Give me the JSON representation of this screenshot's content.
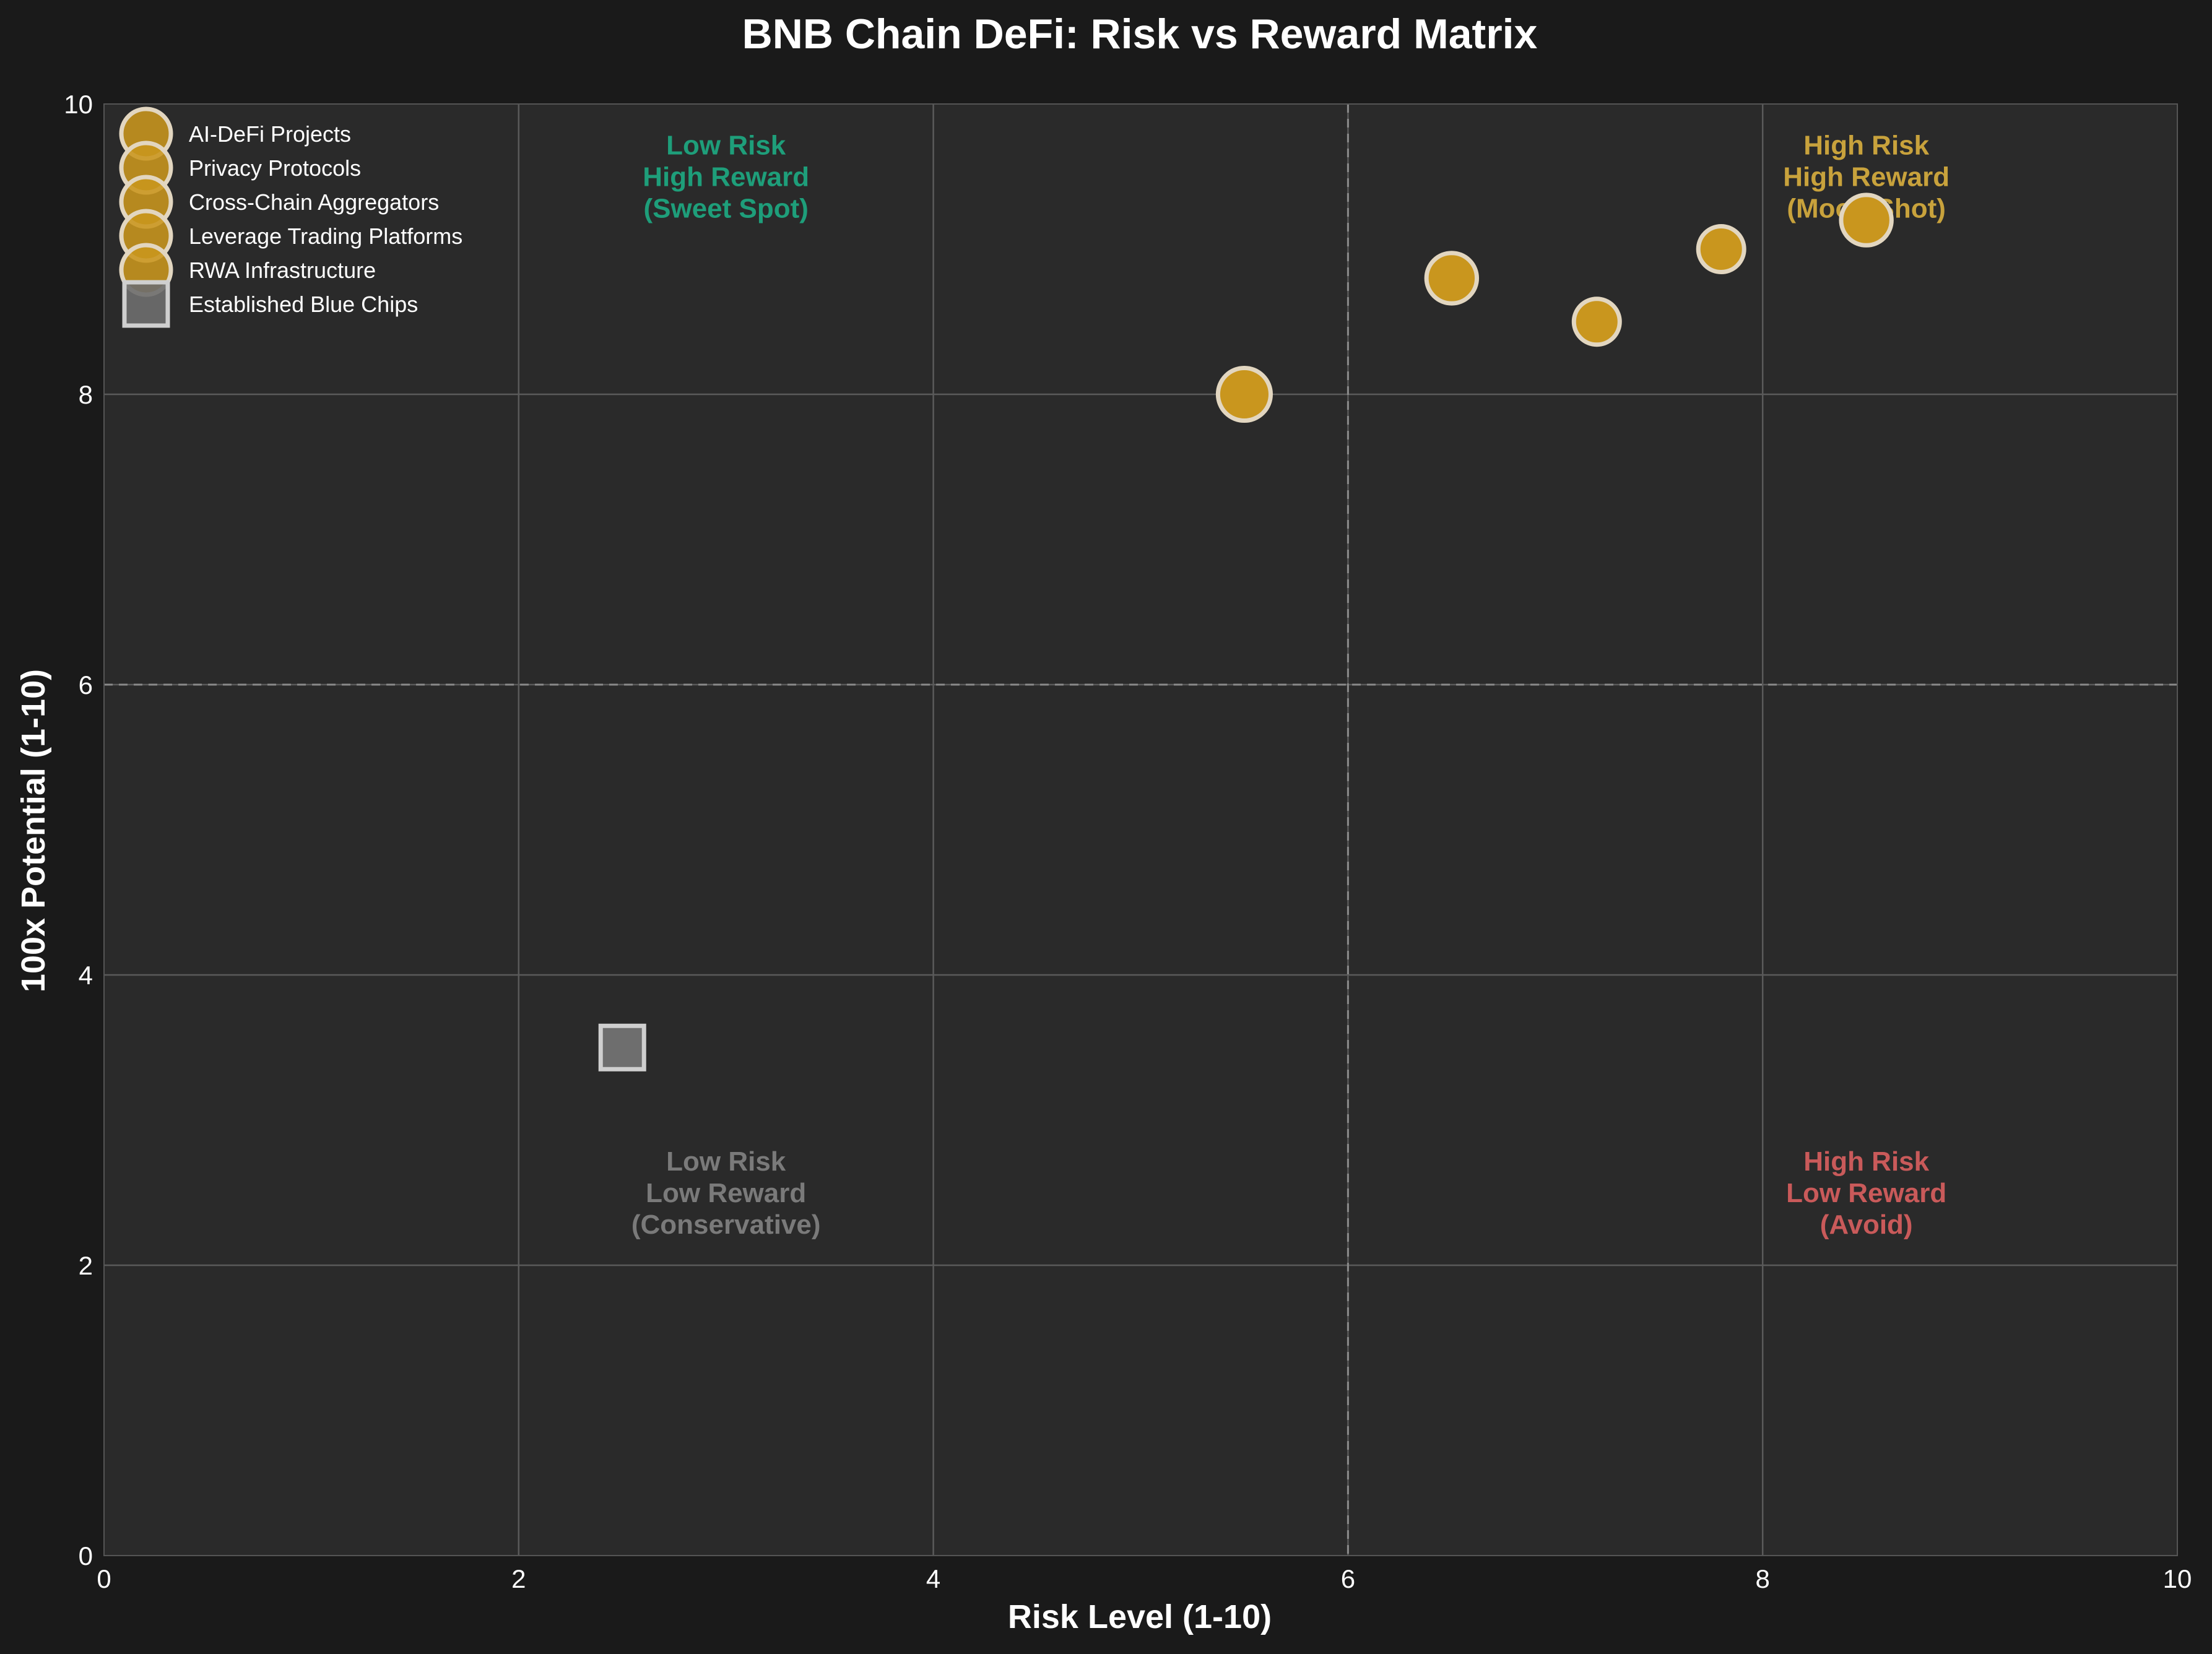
{
  "chart_data": {
    "type": "scatter",
    "title": "BNB Chain DeFi: Risk vs Reward Matrix",
    "xlabel": "Risk Level (1-10)",
    "ylabel": "100x Potential (1-10)",
    "xlim": [
      0,
      10
    ],
    "ylim": [
      0,
      10
    ],
    "x_ticks": [
      0,
      2,
      4,
      6,
      8,
      10
    ],
    "y_ticks": [
      0,
      2,
      4,
      6,
      8,
      10
    ],
    "grid": true,
    "reference_lines": {
      "x": 6,
      "y": 6
    },
    "legend_position": "top-left",
    "colors": {
      "background": "#1a1a1a",
      "plot_background": "#2a2a2a",
      "gold": "#c9961e",
      "marker_edge": "#e2d6c0",
      "grey_marker": "#6e6e6e",
      "green": "#1e9e7a",
      "yellow": "#c8a23c",
      "red": "#c95a5a",
      "grey_text": "#7a7a7a"
    },
    "series": [
      {
        "name": "AI-DeFi Projects",
        "marker": "circle",
        "x": [
          5.5
        ],
        "y": [
          8.0
        ],
        "size": 1.15
      },
      {
        "name": "Privacy Protocols",
        "marker": "circle",
        "x": [
          8.5
        ],
        "y": [
          9.2
        ],
        "size": 1.1
      },
      {
        "name": "Cross-Chain Aggregators",
        "marker": "circle",
        "x": [
          7.2
        ],
        "y": [
          8.5
        ],
        "size": 1.0
      },
      {
        "name": "Leverage Trading Platforms",
        "marker": "circle",
        "x": [
          7.8
        ],
        "y": [
          9.0
        ],
        "size": 1.0
      },
      {
        "name": "RWA Infrastructure",
        "marker": "circle",
        "x": [
          6.5
        ],
        "y": [
          8.8
        ],
        "size": 1.1
      },
      {
        "name": "Established Blue Chips",
        "marker": "square",
        "x": [
          2.5
        ],
        "y": [
          3.5
        ],
        "size": 1.0
      }
    ],
    "quadrant_labels": [
      {
        "lines": [
          "Low Risk",
          "High Reward",
          "(Sweet Spot)"
        ],
        "x": 3.0,
        "y": 9.5,
        "color": "#1e9e7a"
      },
      {
        "lines": [
          "High Risk",
          "High Reward",
          "(Moon Shot)"
        ],
        "x": 8.5,
        "y": 9.5,
        "color": "#c8a23c"
      },
      {
        "lines": [
          "Low Risk",
          "Low Reward",
          "(Conservative)"
        ],
        "x": 3.0,
        "y": 2.5,
        "color": "#7a7a7a"
      },
      {
        "lines": [
          "High Risk",
          "Low Reward",
          "(Avoid)"
        ],
        "x": 8.5,
        "y": 2.5,
        "color": "#c95a5a"
      }
    ]
  }
}
